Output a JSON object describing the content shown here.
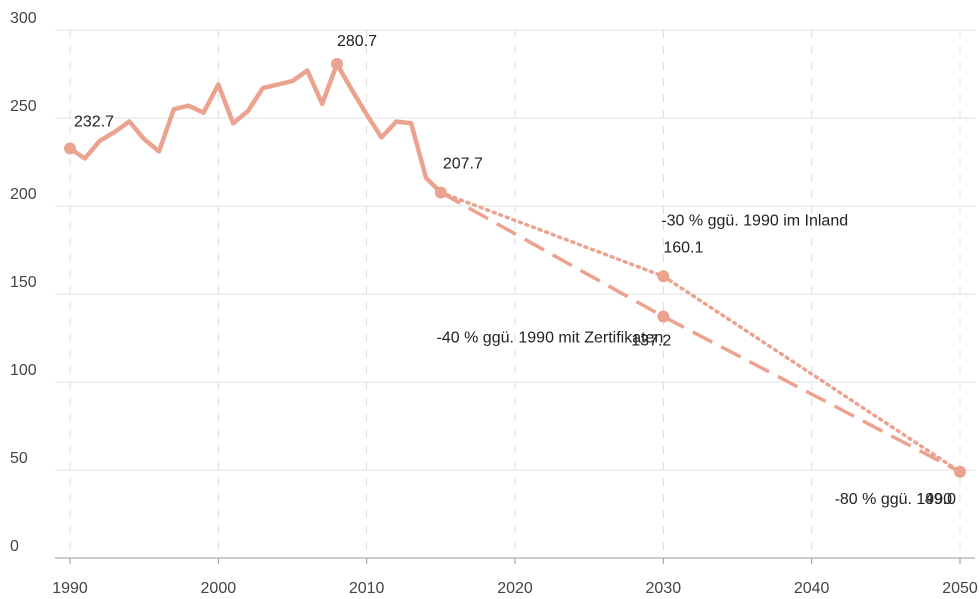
{
  "chart_data": {
    "type": "line",
    "xlim": [
      1990,
      2050
    ],
    "xticks": [
      1990,
      2000,
      2010,
      2020,
      2030,
      2040,
      2050
    ],
    "ylim": [
      0,
      300
    ],
    "yticks": [
      0,
      50,
      100,
      150,
      200,
      250,
      300
    ],
    "grid": true,
    "color": "#eba28e",
    "series": [
      {
        "style": "solid",
        "x": [
          1990,
          1991,
          1992,
          1993,
          1994,
          1995,
          1996,
          1997,
          1998,
          1999,
          2000,
          2001,
          2002,
          2003,
          2004,
          2005,
          2006,
          2007,
          2008,
          2009,
          2010,
          2011,
          2012,
          2013,
          2014,
          2015
        ],
        "values": [
          232.7,
          227,
          237,
          242,
          248,
          238,
          231,
          255,
          257,
          253,
          269,
          247,
          254,
          267,
          269,
          271,
          277,
          258,
          280.7,
          266,
          252,
          239,
          248,
          247,
          216,
          207.7
        ],
        "value_labels": [
          "232.7",
          null,
          null,
          null,
          null,
          null,
          null,
          null,
          null,
          null,
          null,
          null,
          null,
          null,
          null,
          null,
          null,
          null,
          "280.7",
          null,
          null,
          null,
          null,
          null,
          null,
          "207.7"
        ]
      },
      {
        "style": "dotted",
        "x": [
          2015,
          2030,
          2050
        ],
        "values": [
          207.7,
          160.1,
          49
        ],
        "value_labels": [
          null,
          "160.1",
          "49.0"
        ]
      },
      {
        "style": "dashed",
        "x": [
          2015,
          2030,
          2050
        ],
        "values": [
          207.7,
          137.2,
          49
        ],
        "value_labels": [
          null,
          "137.2",
          null
        ]
      }
    ],
    "annotations": [
      "-30 % ggü. 1990 im Inland",
      "-40 % ggü. 1990 mit Zertifikaten",
      "-80 % ggü. 1990"
    ]
  }
}
